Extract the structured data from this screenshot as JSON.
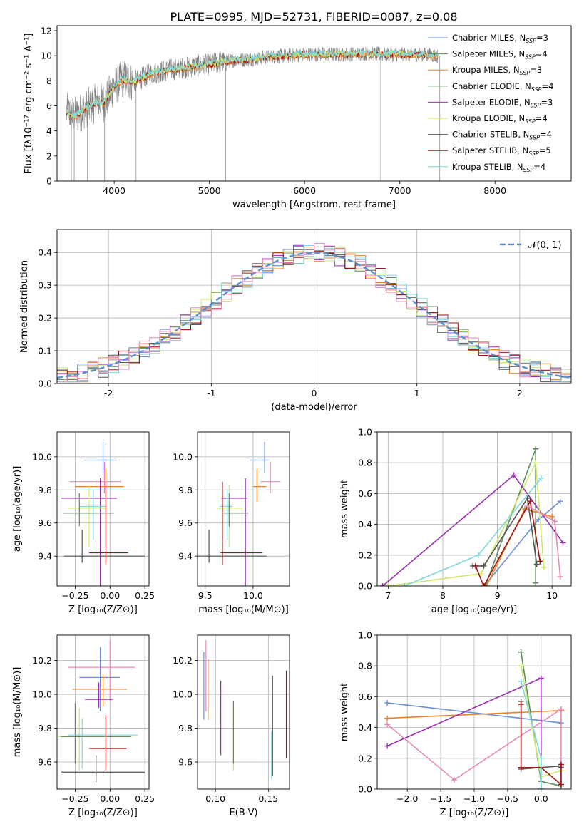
{
  "figure": {
    "title": "PLATE=0995, MJD=52731, FIBERID=0087, z=0.08"
  },
  "colors": {
    "Chabrier MILES": "#6a8fd8",
    "Salpeter MILES": "#5f8a5f",
    "Kroupa MILES": "#e8832a",
    "Chabrier ELODIE": "#5f8a5f",
    "Salpeter ELODIE": "#9b2fb0",
    "Kroupa ELODIE": "#ccea6a",
    "Chabrier STELIB": "#555555",
    "Salpeter STELIB": "#a01414",
    "Kroupa STELIB": "#7fd8dc",
    "Pink": "#e88ab8",
    "Gaussian": "#5b8fd0"
  },
  "chart_data": [
    {
      "id": "spectrum",
      "type": "line",
      "title": "PLATE=0995, MJD=52731, FIBERID=0087, z=0.08",
      "xlabel": "wavelength [Angstrom, rest frame]",
      "ylabel": "Flux [fλ10⁻¹⁷ erg cm⁻² s⁻¹ A⁻¹]",
      "xlim": [
        3400,
        8800
      ],
      "ylim": [
        0,
        12.4
      ],
      "xticks": [
        4000,
        5000,
        6000,
        7000,
        8000
      ],
      "yticks": [
        0,
        2,
        4,
        6,
        8,
        10,
        12
      ],
      "grid": false,
      "legend_position": "right",
      "legend": [
        {
          "label": "Chabrier MILES, N",
          "sub": "SSP",
          "suffix": "=3"
        },
        {
          "label": "Salpeter MILES, N",
          "sub": "SSP",
          "suffix": "=4"
        },
        {
          "label": "Kroupa MILES, N",
          "sub": "SSP",
          "suffix": "=3"
        },
        {
          "label": "Chabrier ELODIE, N",
          "sub": "SSP",
          "suffix": "=4"
        },
        {
          "label": "Salpeter ELODIE, N",
          "sub": "SSP",
          "suffix": "=3"
        },
        {
          "label": "Kroupa ELODIE, N",
          "sub": "SSP",
          "suffix": "=4"
        },
        {
          "label": "Chabrier STELIB, N",
          "sub": "SSP",
          "suffix": "=4"
        },
        {
          "label": "Salpeter STELIB, N",
          "sub": "SSP",
          "suffix": "=5"
        },
        {
          "label": "Kroupa STELIB, N",
          "sub": "SSP",
          "suffix": "=4"
        }
      ],
      "continuum": {
        "x": [
          3500,
          3600,
          3700,
          3800,
          3900,
          4000,
          4100,
          4200,
          4400,
          4600,
          4800,
          5000,
          5200,
          5400,
          5600,
          5800,
          6000,
          6200,
          6400,
          6600,
          6800,
          7000,
          7200,
          7400
        ],
        "y": [
          5.5,
          5.2,
          5.8,
          6.2,
          6.3,
          7.6,
          8.1,
          7.9,
          8.6,
          8.9,
          9.1,
          9.3,
          9.6,
          9.7,
          9.9,
          10.0,
          10.1,
          10.1,
          10.1,
          10.2,
          10.1,
          10.1,
          10.1,
          10.0
        ]
      }
    },
    {
      "id": "residuals",
      "type": "histogram",
      "xlabel": "(data-model)/error",
      "ylabel": "Normed distribution",
      "xlim": [
        -2.5,
        2.5
      ],
      "ylim": [
        0,
        0.47
      ],
      "xticks": [
        -2,
        -1,
        0,
        1,
        2
      ],
      "yticks": [
        0.0,
        0.1,
        0.2,
        0.3,
        0.4
      ],
      "grid": true,
      "legend_position": "top-right",
      "gaussian_label": "𝒩(0, 1)",
      "bins": {
        "start": -2.5,
        "width": 0.1
      }
    },
    {
      "id": "z-age",
      "type": "scatter",
      "xlabel": "Z [log₁₀(Z/Z⊙)]",
      "ylabel": "age  [log₁₀(age/yr)]",
      "xlim": [
        -0.38,
        0.28
      ],
      "ylim": [
        9.22,
        10.15
      ],
      "xticks": [
        -0.25,
        0.0,
        0.25
      ],
      "xtick_labels": [
        "−0.25",
        "0.00",
        "0.25"
      ],
      "yticks": [
        9.4,
        9.6,
        9.8,
        10.0
      ],
      "grid": true,
      "points": [
        {
          "series": "Chabrier MILES",
          "x": -0.05,
          "xerr": [
            0.14,
            0.1
          ],
          "y": 9.98,
          "yerr": [
            0.08,
            0.11
          ]
        },
        {
          "series": "Kroupa MILES",
          "x": -0.03,
          "xerr": [
            0.22,
            0.13
          ],
          "y": 9.82,
          "yerr": [
            0.09,
            0.11
          ]
        },
        {
          "series": "Pink",
          "x": -0.04,
          "xerr": [
            0.25,
            0.12
          ],
          "y": 9.85,
          "yerr": [
            0.07,
            0.12
          ]
        },
        {
          "series": "Salpeter ELODIE",
          "x": -0.07,
          "xerr": [
            0.28,
            0.12
          ],
          "y": 9.75,
          "yerr": [
            0.57,
            0.12
          ]
        },
        {
          "series": "Kroupa ELODIE",
          "x": -0.15,
          "xerr": [
            0.15,
            0.13
          ],
          "y": 9.69,
          "yerr": [
            0.24,
            0.14
          ]
        },
        {
          "series": "Kroupa STELIB",
          "x": -0.12,
          "xerr": [
            0.1,
            0.1
          ],
          "y": 9.7,
          "yerr": [
            0.2,
            0.1
          ]
        },
        {
          "series": "Chabrier ELODIE",
          "x": -0.22,
          "xerr": [
            0.12,
            0.25
          ],
          "y": 9.66,
          "yerr": [
            0.08,
            0.12
          ]
        },
        {
          "series": "Chabrier STELIB",
          "x": -0.2,
          "xerr": [
            0.13,
            0.45
          ],
          "y": 9.4,
          "yerr": [
            0.04,
            0.16
          ]
        },
        {
          "series": "Salpeter STELIB",
          "x": -0.03,
          "xerr": [
            0.12,
            0.16
          ],
          "y": 9.42,
          "yerr": [
            0.07,
            0.43
          ]
        }
      ]
    },
    {
      "id": "mass-age",
      "type": "scatter",
      "xlabel": "mass [log₁₀(M/M⊙)]",
      "xlim": [
        9.42,
        10.38
      ],
      "ylim": [
        9.22,
        10.15
      ],
      "xticks": [
        9.5,
        10.0
      ],
      "xtick_labels": [
        "9.5",
        "10.0"
      ],
      "yticks": [
        9.4,
        9.6,
        9.8,
        10.0
      ],
      "grid": true,
      "points": [
        {
          "series": "Chabrier MILES",
          "x": 10.12,
          "xerr": [
            0.16,
            0.04
          ],
          "y": 9.98,
          "yerr": [
            0.08,
            0.11
          ]
        },
        {
          "series": "Kroupa MILES",
          "x": 10.04,
          "xerr": [
            0.04,
            0.1
          ],
          "y": 9.82,
          "yerr": [
            0.09,
            0.11
          ]
        },
        {
          "series": "Pink",
          "x": 10.18,
          "xerr": [
            0.1,
            0.1
          ],
          "y": 9.85,
          "yerr": [
            0.07,
            0.12
          ]
        },
        {
          "series": "Salpeter ELODIE",
          "x": 9.92,
          "xerr": [
            0.25,
            0.02
          ],
          "y": 9.75,
          "yerr": [
            0.57,
            0.12
          ]
        },
        {
          "series": "Kroupa ELODIE",
          "x": 9.75,
          "xerr": [
            0.13,
            0.14
          ],
          "y": 9.69,
          "yerr": [
            0.24,
            0.14
          ]
        },
        {
          "series": "Kroupa STELIB",
          "x": 9.73,
          "xerr": [
            0.08,
            0.05
          ],
          "y": 9.7,
          "yerr": [
            0.2,
            0.1
          ]
        },
        {
          "series": "Chabrier ELODIE",
          "x": 9.75,
          "xerr": [
            0.06,
            0.2
          ],
          "y": 9.66,
          "yerr": [
            0.08,
            0.12
          ]
        },
        {
          "series": "Chabrier STELIB",
          "x": 9.54,
          "xerr": [
            0.12,
            0.6
          ],
          "y": 9.4,
          "yerr": [
            0.04,
            0.16
          ]
        },
        {
          "series": "Salpeter STELIB",
          "x": 9.68,
          "xerr": [
            0.02,
            0.42
          ],
          "y": 9.42,
          "yerr": [
            0.07,
            0.43
          ]
        }
      ]
    },
    {
      "id": "age-weight",
      "type": "line",
      "xlabel": "age  [log₁₀(age/yr)]",
      "ylabel": "mass weight",
      "xlim": [
        6.8,
        10.35
      ],
      "ylim": [
        0,
        1.0
      ],
      "xticks": [
        7,
        8,
        9,
        10
      ],
      "yticks": [
        0.0,
        0.2,
        0.4,
        0.6,
        0.8,
        1.0
      ],
      "grid": true,
      "series": [
        {
          "name": "Chabrier MILES",
          "x": [
            8.76,
            9.75,
            10.15
          ],
          "y": [
            0.0,
            0.43,
            0.55
          ]
        },
        {
          "name": "Kroupa MILES",
          "x": [
            8.8,
            9.5,
            10.0
          ],
          "y": [
            0.0,
            0.5,
            0.45
          ]
        },
        {
          "name": "Chabrier ELODIE",
          "x": [
            8.78,
            9.7,
            9.7
          ],
          "y": [
            0.0,
            0.89,
            0.02
          ]
        },
        {
          "name": "Salpeter ELODIE",
          "x": [
            6.9,
            9.3,
            10.2
          ],
          "y": [
            0.0,
            0.72,
            0.28
          ]
        },
        {
          "name": "Kroupa ELODIE",
          "x": [
            7.0,
            8.7,
            9.7,
            9.85
          ],
          "y": [
            0.0,
            0.08,
            0.8,
            0.12
          ]
        },
        {
          "name": "Chabrier STELIB",
          "x": [
            8.55,
            8.75,
            9.55,
            9.72
          ],
          "y": [
            0.13,
            0.13,
            0.57,
            0.14
          ]
        },
        {
          "name": "Salpeter STELIB",
          "x": [
            8.6,
            8.75,
            9.6,
            9.78
          ],
          "y": [
            0.13,
            0.0,
            0.55,
            0.16
          ]
        },
        {
          "name": "Kroupa STELIB",
          "x": [
            7.3,
            8.65,
            9.8
          ],
          "y": [
            0.0,
            0.2,
            0.7
          ]
        },
        {
          "name": "Pink",
          "x": [
            9.55,
            10.05,
            10.15
          ],
          "y": [
            0.52,
            0.42,
            0.06
          ]
        }
      ]
    },
    {
      "id": "z-mass",
      "type": "scatter",
      "xlabel": "Z [log₁₀(Z/Z⊙)]",
      "ylabel": "mass [log₁₀(M/M⊙)]",
      "xlim": [
        -0.38,
        0.28
      ],
      "ylim": [
        9.44,
        10.35
      ],
      "xticks": [
        -0.25,
        0.0,
        0.25
      ],
      "xtick_labels": [
        "−0.25",
        "0.00",
        "0.25"
      ],
      "yticks": [
        9.6,
        9.8,
        10.0,
        10.2
      ],
      "grid": true,
      "points": [
        {
          "series": "Chabrier MILES",
          "x": -0.07,
          "xerr": [
            0.15,
            0.14
          ],
          "y": 10.1,
          "yerr": [
            0.2,
            0.18
          ]
        },
        {
          "series": "Pink",
          "x": 0.0,
          "xerr": [
            0.3,
            0.18
          ],
          "y": 10.16,
          "yerr": [
            0.2,
            0.16
          ]
        },
        {
          "series": "Kroupa MILES",
          "x": -0.05,
          "xerr": [
            0.22,
            0.17
          ],
          "y": 10.03,
          "yerr": [
            0.1,
            0.09
          ]
        },
        {
          "series": "Salpeter ELODIE",
          "x": -0.08,
          "xerr": [
            0.1,
            0.1
          ],
          "y": 9.97,
          "yerr": [
            0.05,
            0.1
          ]
        },
        {
          "series": "Kroupa ELODIE",
          "x": -0.22,
          "xerr": [
            0.15,
            0.38
          ],
          "y": 9.75,
          "yerr": [
            0.2,
            0.17
          ]
        },
        {
          "series": "Chabrier ELODIE",
          "x": -0.25,
          "xerr": [
            0.1,
            0.4
          ],
          "y": 9.75,
          "yerr": [
            0.16,
            0.2
          ]
        },
        {
          "series": "Kroupa STELIB",
          "x": -0.2,
          "xerr": [
            0.1,
            0.4
          ],
          "y": 9.76,
          "yerr": [
            0.2,
            0.1
          ]
        },
        {
          "series": "Salpeter STELIB",
          "x": -0.03,
          "xerr": [
            0.12,
            0.15
          ],
          "y": 9.68,
          "yerr": [
            0.13,
            0.2
          ]
        },
        {
          "series": "Chabrier STELIB",
          "x": -0.1,
          "xerr": [
            0.25,
            0.35
          ],
          "y": 9.54,
          "yerr": [
            0.06,
            0.1
          ]
        }
      ]
    },
    {
      "id": "ebv-mass",
      "type": "errorbar",
      "xlabel": "E(B-V)",
      "xlim": [
        0.083,
        0.17
      ],
      "ylim": [
        9.44,
        10.35
      ],
      "xticks": [
        0.1,
        0.15
      ],
      "xtick_labels": [
        "0.10",
        "0.15"
      ],
      "yticks": [
        9.6,
        9.8,
        10.0,
        10.2
      ],
      "grid": true,
      "points": [
        {
          "series": "Chabrier MILES",
          "x": 0.089,
          "y": 10.05,
          "yerr": [
            0.2,
            0.2
          ]
        },
        {
          "series": "Pink",
          "x": 0.091,
          "y": 10.1,
          "yerr": [
            0.2,
            0.22
          ]
        },
        {
          "series": "Kroupa MILES",
          "x": 0.093,
          "y": 10.03,
          "yerr": [
            0.18,
            0.18
          ]
        },
        {
          "series": "Salpeter ELODIE",
          "x": 0.105,
          "y": 9.86,
          "yerr": [
            0.22,
            0.22
          ]
        },
        {
          "series": "Kroupa ELODIE",
          "x": 0.117,
          "y": 9.75,
          "yerr": [
            0.2,
            0.2
          ]
        },
        {
          "series": "Chabrier ELODIE",
          "x": 0.117,
          "y": 9.77,
          "yerr": [
            0.18,
            0.19
          ]
        },
        {
          "series": "Kroupa STELIB",
          "x": 0.153,
          "y": 9.63,
          "yerr": [
            0.13,
            0.15
          ]
        },
        {
          "series": "Chabrier STELIB",
          "x": 0.154,
          "y": 9.82,
          "yerr": [
            0.3,
            0.29
          ]
        },
        {
          "series": "Salpeter STELIB",
          "x": 0.167,
          "y": 9.88,
          "yerr": [
            0.26,
            0.26
          ]
        }
      ]
    },
    {
      "id": "z-weight",
      "type": "line",
      "xlabel": "Z [log₁₀(Z/Z⊙)]",
      "ylabel": "mass weight",
      "xlim": [
        -2.45,
        0.45
      ],
      "ylim": [
        0,
        1.0
      ],
      "xticks": [
        -2.0,
        -1.5,
        -1.0,
        -0.5,
        0.0
      ],
      "xtick_labels": [
        "−2.0",
        "−1.5",
        "−1.0",
        "−0.5",
        "0.0"
      ],
      "yticks": [
        0.0,
        0.2,
        0.4,
        0.6,
        0.8,
        1.0
      ],
      "grid": true,
      "series": [
        {
          "name": "Chabrier MILES",
          "x": [
            -2.3,
            0.3
          ],
          "y": [
            0.56,
            0.43
          ]
        },
        {
          "name": "Kroupa MILES",
          "x": [
            -2.3,
            0.3
          ],
          "y": [
            0.46,
            0.51
          ]
        },
        {
          "name": "Salpeter ELODIE",
          "x": [
            -2.3,
            0.0,
            0.0
          ],
          "y": [
            0.28,
            0.72,
            0.0
          ]
        },
        {
          "name": "Pink",
          "x": [
            -2.3,
            -1.3,
            0.3,
            0.3
          ],
          "y": [
            0.42,
            0.06,
            0.52,
            0.03
          ]
        },
        {
          "name": "Chabrier ELODIE",
          "x": [
            -0.3,
            0.0,
            0.3
          ],
          "y": [
            0.89,
            0.05,
            0.02
          ]
        },
        {
          "name": "Kroupa ELODIE",
          "x": [
            -0.3,
            0.0,
            0.3
          ],
          "y": [
            0.8,
            0.08,
            0.12
          ]
        },
        {
          "name": "Chabrier STELIB",
          "x": [
            -0.3,
            -0.3,
            0.3,
            0.3
          ],
          "y": [
            0.57,
            0.13,
            0.15,
            0.14
          ]
        },
        {
          "name": "Salpeter STELIB",
          "x": [
            -0.3,
            -0.3,
            0.0,
            0.3,
            0.3
          ],
          "y": [
            0.55,
            0.14,
            0.14,
            0.03,
            0.16
          ]
        },
        {
          "name": "Kroupa STELIB",
          "x": [
            -0.3,
            0.0,
            0.0
          ],
          "y": [
            0.7,
            0.2,
            0.0
          ]
        }
      ]
    }
  ]
}
